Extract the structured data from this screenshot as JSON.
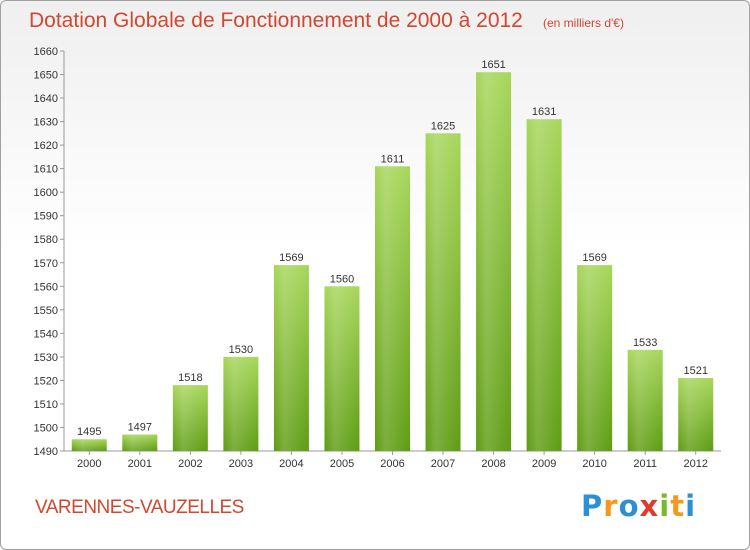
{
  "title": "Dotation Globale de Fonctionnement de 2000 à 2012",
  "subtitle": "(en milliers d'€)",
  "city": "VARENNES-VAUZELLES",
  "logo": {
    "letters": [
      "P",
      "r",
      "o",
      "x",
      "i",
      "t",
      "i"
    ],
    "colors": [
      "#2e8fd6",
      "#f39a1e",
      "#2e8fd6",
      "#e23a2e",
      "#7ab92e",
      "#f39a1e",
      "#2e8fd6"
    ]
  },
  "colors": {
    "bar_light": "#a6d65a",
    "bar_dark": "#5e9c12",
    "accent_text": "#d2472f"
  },
  "chart_data": {
    "type": "bar",
    "title": "Dotation Globale de Fonctionnement de 2000 à 2012",
    "subtitle": "(en milliers d'€)",
    "xlabel": "",
    "ylabel": "",
    "categories": [
      "2000",
      "2001",
      "2002",
      "2003",
      "2004",
      "2005",
      "2006",
      "2007",
      "2008",
      "2009",
      "2010",
      "2011",
      "2012"
    ],
    "values": [
      1495,
      1497,
      1518,
      1530,
      1569,
      1560,
      1611,
      1625,
      1651,
      1631,
      1569,
      1533,
      1521
    ],
    "ylim": [
      1490,
      1660
    ],
    "yticks": [
      1490,
      1500,
      1510,
      1520,
      1530,
      1540,
      1550,
      1560,
      1570,
      1580,
      1590,
      1600,
      1610,
      1620,
      1630,
      1640,
      1650,
      1660
    ],
    "grid": false,
    "legend": "none"
  }
}
